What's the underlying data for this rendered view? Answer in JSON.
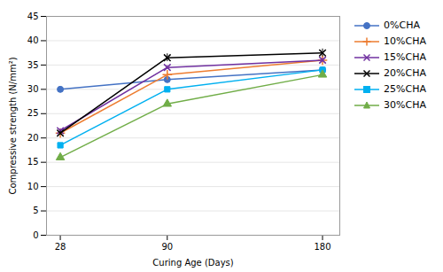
{
  "chart_data": {
    "type": "line",
    "xlabel": "Curing Age (Days)",
    "ylabel": "Compressive strength (N/mm²)",
    "x": [
      28,
      90,
      180
    ],
    "series": [
      {
        "name": "0%CHA",
        "color": "#4472C4",
        "marker": "circle",
        "values": [
          30.0,
          32.0,
          34.0
        ],
        "yerr": [
          0.4,
          0.4,
          0.4
        ]
      },
      {
        "name": "10%CHA",
        "color": "#ED7D31",
        "marker": "plus",
        "values": [
          21.0,
          33.0,
          36.0
        ],
        "yerr": [
          0.4,
          0.4,
          0.4
        ]
      },
      {
        "name": "15%CHA",
        "color": "#7030A0",
        "marker": "times",
        "values": [
          21.5,
          34.5,
          36.0
        ],
        "yerr": [
          0.4,
          0.4,
          0.4
        ]
      },
      {
        "name": "20%CHA",
        "color": "#000000",
        "marker": "times",
        "values": [
          21.0,
          36.5,
          37.5
        ],
        "yerr": [
          0.4,
          0.8,
          0.8
        ]
      },
      {
        "name": "25%CHA",
        "color": "#00B0F0",
        "marker": "square",
        "values": [
          18.5,
          30.0,
          34.0
        ],
        "yerr": [
          0.4,
          0.4,
          0.4
        ]
      },
      {
        "name": "30%CHA",
        "color": "#70AD47",
        "marker": "triangle",
        "values": [
          16.0,
          27.0,
          33.0
        ],
        "yerr": [
          0.4,
          0.4,
          0.4
        ]
      }
    ],
    "xlim": [
      20,
      190
    ],
    "xticks": [
      28,
      90,
      180
    ],
    "ylim": [
      0,
      45
    ],
    "yticks": [
      0,
      5,
      10,
      15,
      20,
      25,
      30,
      35,
      40,
      45
    ],
    "grid": true,
    "legend": "right"
  }
}
